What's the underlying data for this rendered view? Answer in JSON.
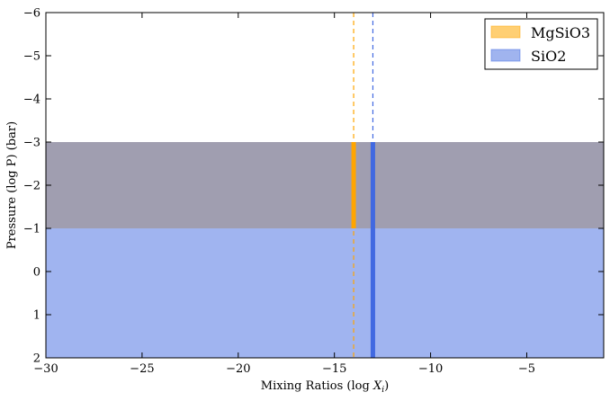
{
  "chart_data": {
    "type": "area",
    "xlabel": "Mixing Ratios (log X_i)",
    "xlabel_main": "Mixing Ratios (log ",
    "xlabel_var": "X",
    "xlabel_sub": "i",
    "xlabel_close": ")",
    "ylabel": "Pressure (log P) (bar)",
    "xlim": [
      -30,
      -1
    ],
    "ylim": [
      2,
      -6
    ],
    "y_inverted": true,
    "x_ticks": [
      -30,
      -25,
      -20,
      -15,
      -10,
      -5
    ],
    "x_tick_labels": [
      "−30",
      "−25",
      "−20",
      "−15",
      "−10",
      "−5"
    ],
    "y_ticks": [
      -6,
      -5,
      -4,
      -3,
      -2,
      -1,
      0,
      1,
      2
    ],
    "y_tick_labels": [
      "−6",
      "−5",
      "−4",
      "−3",
      "−2",
      "−1",
      "0",
      "1",
      "2"
    ],
    "grid": false,
    "legend_position": "top-right",
    "series": [
      {
        "name": "MgSiO3",
        "color": "#ffa500",
        "legend_color": "#ffcf73",
        "band_color": "#ffa500",
        "mixing_ratio": -14,
        "pressure_top": -3,
        "pressure_bottom": -1
      },
      {
        "name": "SiO2",
        "color": "#4169e1",
        "legend_color": "#a0b4ef",
        "band_color": "#4169e1",
        "mixing_ratio": -13,
        "pressure_top": -3,
        "pressure_bottom": 2
      }
    ],
    "overlap_color": "#a09cb0",
    "cloud_fill_color": "#a0b4ef"
  }
}
